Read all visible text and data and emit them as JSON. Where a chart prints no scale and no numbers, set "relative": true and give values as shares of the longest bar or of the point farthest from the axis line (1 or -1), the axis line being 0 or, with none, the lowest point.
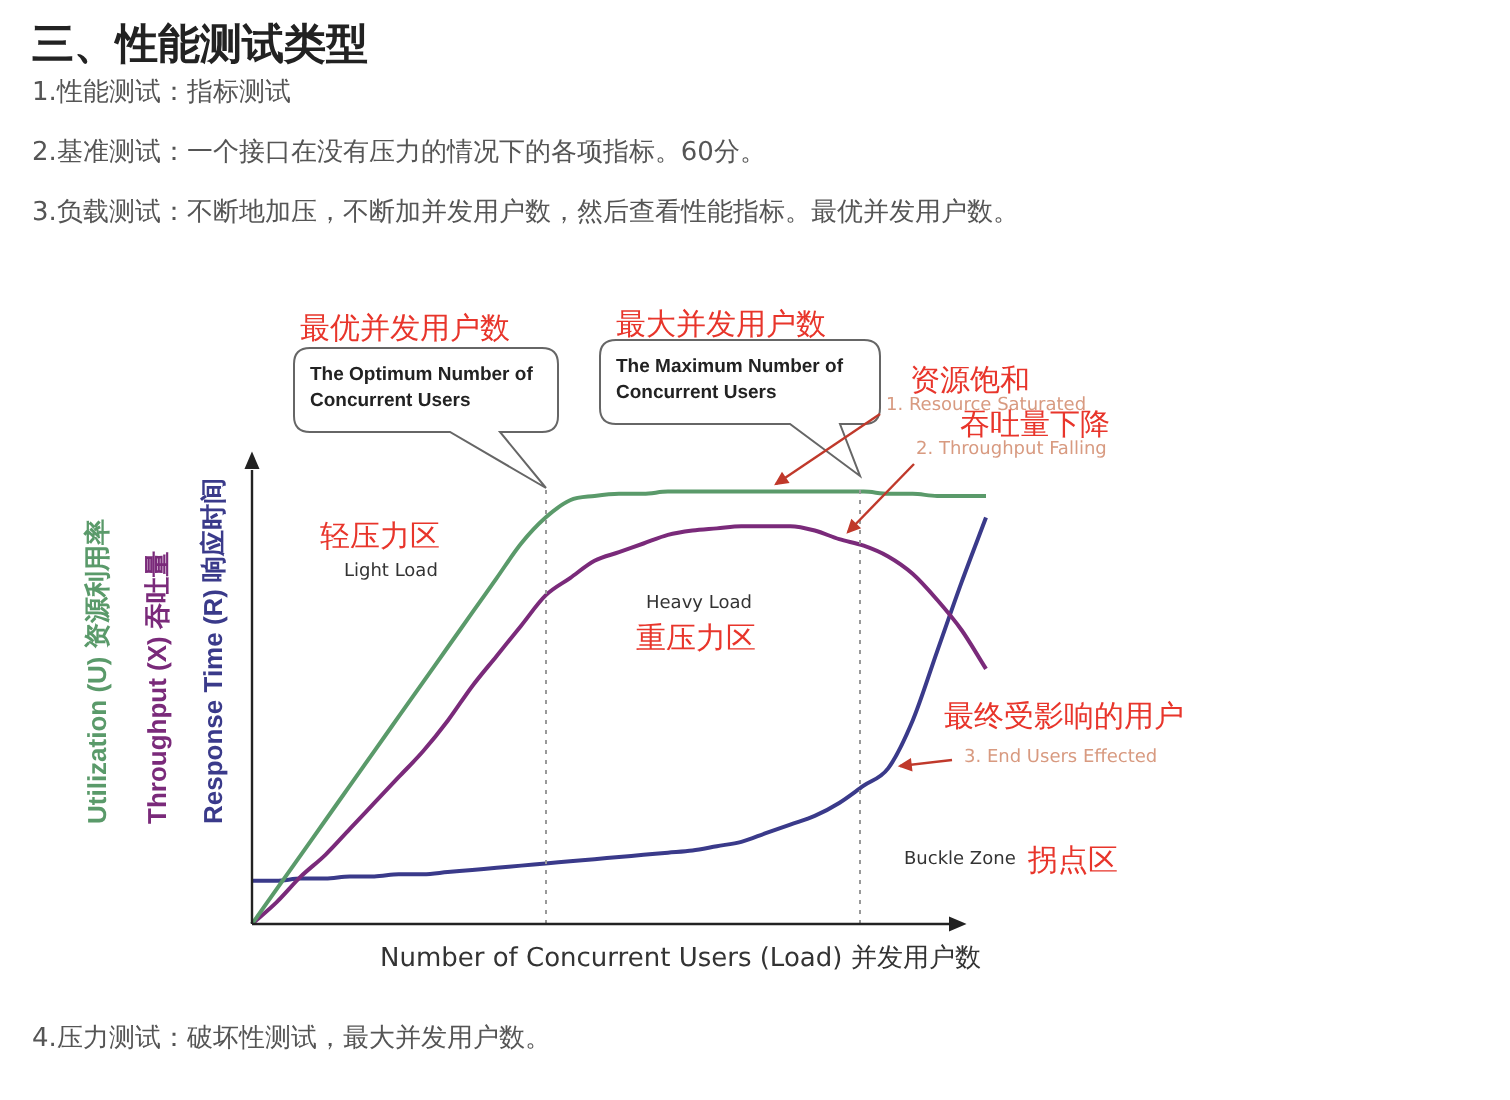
{
  "chart_data": {
    "type": "line",
    "relative": true,
    "title": "三、性能测试类型",
    "xlabel": "Number of  Concurrent Users (Load) 并发用户数",
    "categories": [
      null,
      null,
      null,
      null,
      null,
      null,
      null,
      null,
      null,
      null,
      null,
      null,
      null,
      null,
      null,
      null,
      null,
      null,
      null,
      null,
      null,
      null,
      null,
      null,
      null,
      null,
      null,
      null,
      null,
      null,
      null
    ],
    "series": [
      {
        "name": "Utilization (U) 资源利用率",
        "color": "#5a9a6a",
        "values": [
          0,
          0.08,
          0.16,
          0.24,
          0.32,
          0.4,
          0.48,
          0.56,
          0.64,
          0.72,
          0.8,
          0.88,
          0.94,
          0.98,
          0.99,
          0.995,
          0.995,
          1,
          1,
          1,
          1,
          1,
          1,
          1,
          1,
          1,
          0.995,
          0.995,
          0.99,
          0.99,
          0.99
        ]
      },
      {
        "name": "Throughput (X) 吞吐量",
        "color": "#7a2a7a",
        "values": [
          0,
          0.05,
          0.11,
          0.16,
          0.22,
          0.28,
          0.34,
          0.4,
          0.47,
          0.55,
          0.62,
          0.69,
          0.76,
          0.8,
          0.84,
          0.86,
          0.88,
          0.9,
          0.91,
          0.915,
          0.92,
          0.92,
          0.92,
          0.91,
          0.89,
          0.875,
          0.85,
          0.81,
          0.75,
          0.68,
          0.59
        ]
      },
      {
        "name": "Response Time (R) 响应时间",
        "color": "#3a3a8a",
        "values": [
          0.1,
          0.1,
          0.105,
          0.105,
          0.11,
          0.11,
          0.115,
          0.115,
          0.12,
          0.125,
          0.13,
          0.135,
          0.14,
          0.145,
          0.15,
          0.155,
          0.16,
          0.165,
          0.17,
          0.18,
          0.19,
          0.21,
          0.23,
          0.25,
          0.28,
          0.32,
          0.36,
          0.47,
          0.63,
          0.79,
          0.94
        ]
      }
    ],
    "annotations": [
      "1.性能测试：指标测试",
      "2.基准测试：一个接口在没有压力的情况下的各项指标。60分。",
      "3.负载测试：不断地加压，不断加并发用户数，然后查看性能指标。最优并发用户数。",
      "最优并发用户数",
      "最大并发用户数",
      "The Optimum Number of Concurrent Users",
      "The  Maximum  Number of Concurrent Users",
      "资源饱和",
      "1. Resource Saturated",
      "吞吐量下降",
      "2. Throughput Falling",
      "轻压力区",
      "Light Load",
      "Heavy Load",
      "重压力区",
      "最终受影响的用户",
      "3. End Users Effected",
      "Buckle Zone",
      "拐点区",
      "4.压力测试：破坏性测试，最大并发用户数。"
    ],
    "line_style": "solid",
    "marker": "none",
    "grid": false,
    "legend": false
  }
}
